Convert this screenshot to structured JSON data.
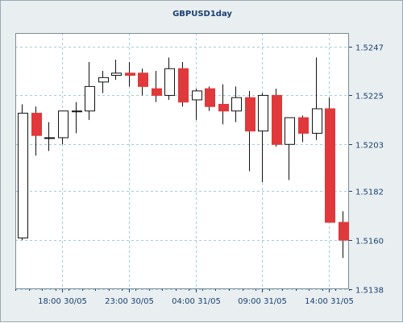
{
  "chart_data": {
    "type": "candlestick",
    "title": "GBPUSD1day",
    "xlabel": "",
    "ylabel": "",
    "ylim": [
      1.5138,
      1.5253
    ],
    "grid": true,
    "colors": {
      "up": "#ffffff",
      "down": "#e0383b",
      "wick": "#111111",
      "plot_bg": "#ffffff",
      "outer_bg": "#e9eff0",
      "grid": "#9fd0d6",
      "axis": "#1a3f73"
    },
    "yticks": [
      {
        "value": 1.5138,
        "label": "1.5138"
      },
      {
        "value": 1.516,
        "label": "1.5160"
      },
      {
        "value": 1.5182,
        "label": "1.5182"
      },
      {
        "value": 1.5203,
        "label": "1.5203"
      },
      {
        "value": 1.5225,
        "label": "1.5225"
      },
      {
        "value": 1.5247,
        "label": "1.5247"
      }
    ],
    "xticks": [
      {
        "index": 3.5,
        "label": "18:00 30/05"
      },
      {
        "index": 8.5,
        "label": "23:00 30/05"
      },
      {
        "index": 13.5,
        "label": "04:00 31/05"
      },
      {
        "index": 18.5,
        "label": "09:00 31/05"
      },
      {
        "index": 23.5,
        "label": "14:00 31/05"
      }
    ],
    "candles": [
      {
        "open": 1.5161,
        "high": 1.5221,
        "low": 1.516,
        "close": 1.5217
      },
      {
        "open": 1.5217,
        "high": 1.522,
        "low": 1.5198,
        "close": 1.5207
      },
      {
        "open": 1.5206,
        "high": 1.5213,
        "low": 1.52,
        "close": 1.5206
      },
      {
        "open": 1.5206,
        "high": 1.5218,
        "low": 1.5203,
        "close": 1.5218
      },
      {
        "open": 1.5218,
        "high": 1.5222,
        "low": 1.5208,
        "close": 1.5218
      },
      {
        "open": 1.5218,
        "high": 1.524,
        "low": 1.5214,
        "close": 1.5229
      },
      {
        "open": 1.5231,
        "high": 1.5236,
        "low": 1.5226,
        "close": 1.5233
      },
      {
        "open": 1.5234,
        "high": 1.5241,
        "low": 1.5232,
        "close": 1.5235
      },
      {
        "open": 1.5235,
        "high": 1.524,
        "low": 1.5229,
        "close": 1.5234
      },
      {
        "open": 1.5235,
        "high": 1.5237,
        "low": 1.5225,
        "close": 1.5229
      },
      {
        "open": 1.5228,
        "high": 1.5236,
        "low": 1.5222,
        "close": 1.5225
      },
      {
        "open": 1.5225,
        "high": 1.5242,
        "low": 1.5223,
        "close": 1.5237
      },
      {
        "open": 1.5237,
        "high": 1.524,
        "low": 1.522,
        "close": 1.5222
      },
      {
        "open": 1.5223,
        "high": 1.5228,
        "low": 1.5214,
        "close": 1.5227
      },
      {
        "open": 1.5228,
        "high": 1.5229,
        "low": 1.5218,
        "close": 1.522
      },
      {
        "open": 1.5221,
        "high": 1.523,
        "low": 1.5212,
        "close": 1.5218
      },
      {
        "open": 1.5218,
        "high": 1.5229,
        "low": 1.5213,
        "close": 1.5224
      },
      {
        "open": 1.5224,
        "high": 1.5227,
        "low": 1.5191,
        "close": 1.5209
      },
      {
        "open": 1.5209,
        "high": 1.5226,
        "low": 1.5186,
        "close": 1.5225
      },
      {
        "open": 1.5225,
        "high": 1.5228,
        "low": 1.5202,
        "close": 1.5203
      },
      {
        "open": 1.5203,
        "high": 1.5215,
        "low": 1.5187,
        "close": 1.5215
      },
      {
        "open": 1.5215,
        "high": 1.5216,
        "low": 1.5204,
        "close": 1.5208
      },
      {
        "open": 1.5208,
        "high": 1.5242,
        "low": 1.5205,
        "close": 1.5219
      },
      {
        "open": 1.5219,
        "high": 1.5224,
        "low": 1.5168,
        "close": 1.5168
      },
      {
        "open": 1.5168,
        "high": 1.5173,
        "low": 1.5152,
        "close": 1.516
      }
    ]
  }
}
